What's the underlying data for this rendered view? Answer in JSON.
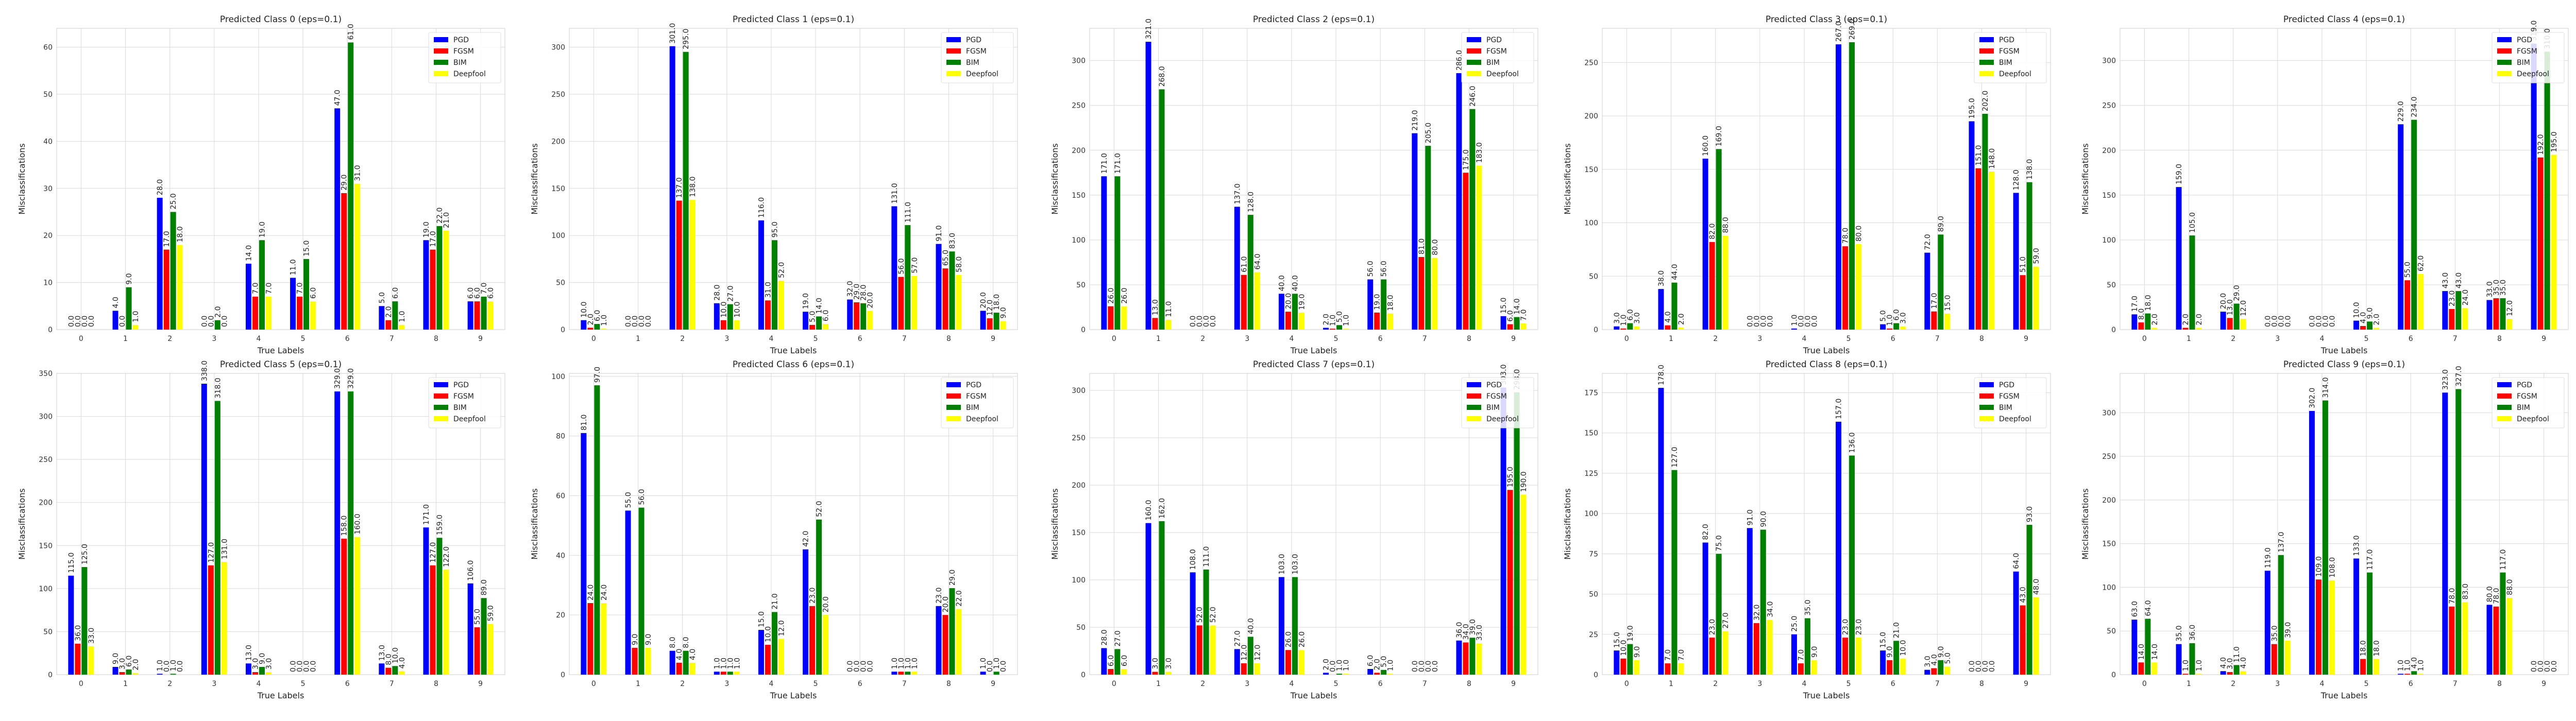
{
  "figure": {
    "xlabel": "True Labels",
    "ylabel": "Misclassifications",
    "legend_position": "top-right",
    "grid": true
  },
  "series_colors": {
    "PGD": "#0000ff",
    "FGSM": "#ff0000",
    "BIM": "#008000",
    "Deepfool": "#ffff00"
  },
  "chart_data": [
    {
      "type": "bar",
      "title": "Predicted Class 0 (eps=0.1)",
      "categories": [
        "0",
        "1",
        "2",
        "3",
        "4",
        "5",
        "6",
        "7",
        "8",
        "9"
      ],
      "xlabel": "True Labels",
      "ylabel": "Misclassifications",
      "ylim": [
        0,
        64
      ],
      "yticks": [
        0,
        10,
        20,
        30,
        40,
        50,
        60
      ],
      "series": [
        {
          "name": "PGD",
          "values": [
            0,
            4,
            28,
            0,
            14,
            11,
            47,
            5,
            19,
            6
          ]
        },
        {
          "name": "FGSM",
          "values": [
            0,
            0,
            17,
            0,
            7,
            7,
            29,
            2,
            17,
            6
          ]
        },
        {
          "name": "BIM",
          "values": [
            0,
            9,
            25,
            2,
            19,
            15,
            61,
            6,
            22,
            7
          ]
        },
        {
          "name": "Deepfool",
          "values": [
            0,
            1,
            18,
            0,
            7,
            6,
            31,
            1,
            21,
            6
          ]
        }
      ]
    },
    {
      "type": "bar",
      "title": "Predicted Class 1 (eps=0.1)",
      "categories": [
        "0",
        "1",
        "2",
        "3",
        "4",
        "5",
        "6",
        "7",
        "8",
        "9"
      ],
      "xlabel": "True Labels",
      "ylabel": "Misclassifications",
      "ylim": [
        0,
        320
      ],
      "yticks": [
        0,
        50,
        100,
        150,
        200,
        250,
        300
      ],
      "series": [
        {
          "name": "PGD",
          "values": [
            10,
            0,
            301,
            28,
            116,
            19,
            32,
            131,
            91,
            20
          ]
        },
        {
          "name": "FGSM",
          "values": [
            2,
            0,
            137,
            10,
            31,
            5,
            29,
            56,
            65,
            12
          ]
        },
        {
          "name": "BIM",
          "values": [
            6,
            0,
            295,
            27,
            95,
            14,
            28,
            111,
            83,
            18
          ]
        },
        {
          "name": "Deepfool",
          "values": [
            1,
            0,
            138,
            10,
            52,
            6,
            20,
            57,
            58,
            9
          ]
        }
      ]
    },
    {
      "type": "bar",
      "title": "Predicted Class 2 (eps=0.1)",
      "categories": [
        "0",
        "1",
        "2",
        "3",
        "4",
        "5",
        "6",
        "7",
        "8",
        "9"
      ],
      "xlabel": "True Labels",
      "ylabel": "Misclassifications",
      "ylim": [
        0,
        336
      ],
      "yticks": [
        0,
        50,
        100,
        150,
        200,
        250,
        300
      ],
      "series": [
        {
          "name": "PGD",
          "values": [
            171,
            321,
            0,
            137,
            40,
            2,
            56,
            219,
            286,
            15
          ]
        },
        {
          "name": "FGSM",
          "values": [
            26,
            13,
            0,
            61,
            20,
            1,
            19,
            81,
            175,
            6
          ]
        },
        {
          "name": "BIM",
          "values": [
            171,
            268,
            0,
            128,
            40,
            5,
            56,
            205,
            246,
            14
          ]
        },
        {
          "name": "Deepfool",
          "values": [
            26,
            11,
            0,
            64,
            19,
            1,
            18,
            80,
            183,
            7
          ]
        }
      ]
    },
    {
      "type": "bar",
      "title": "Predicted Class 3 (eps=0.1)",
      "categories": [
        "0",
        "1",
        "2",
        "3",
        "4",
        "5",
        "6",
        "7",
        "8",
        "9"
      ],
      "xlabel": "True Labels",
      "ylabel": "Misclassifications",
      "ylim": [
        0,
        282
      ],
      "yticks": [
        0,
        50,
        100,
        150,
        200,
        250
      ],
      "series": [
        {
          "name": "PGD",
          "values": [
            3,
            38,
            160,
            0,
            1,
            267,
            5,
            72,
            195,
            128
          ]
        },
        {
          "name": "FGSM",
          "values": [
            1,
            4,
            82,
            0,
            0,
            78,
            1,
            17,
            151,
            51
          ]
        },
        {
          "name": "BIM",
          "values": [
            6,
            44,
            169,
            0,
            0,
            269,
            6,
            89,
            202,
            138
          ]
        },
        {
          "name": "Deepfool",
          "values": [
            3,
            2,
            88,
            0,
            0,
            80,
            3,
            15,
            148,
            59
          ]
        }
      ]
    },
    {
      "type": "bar",
      "title": "Predicted Class 4 (eps=0.1)",
      "categories": [
        "0",
        "1",
        "2",
        "3",
        "4",
        "5",
        "6",
        "7",
        "8",
        "9"
      ],
      "xlabel": "True Labels",
      "ylabel": "Misclassifications",
      "ylim": [
        0,
        336
      ],
      "yticks": [
        0,
        50,
        100,
        150,
        200,
        250,
        300
      ],
      "series": [
        {
          "name": "PGD",
          "values": [
            17,
            159,
            20,
            0,
            0,
            10,
            229,
            43,
            33,
            319
          ]
        },
        {
          "name": "FGSM",
          "values": [
            8,
            2,
            13,
            0,
            0,
            4,
            55,
            23,
            35,
            192
          ]
        },
        {
          "name": "BIM",
          "values": [
            18,
            105,
            29,
            0,
            0,
            9,
            234,
            43,
            35,
            310
          ]
        },
        {
          "name": "Deepfool",
          "values": [
            2,
            2,
            12,
            0,
            0,
            2,
            62,
            24,
            12,
            195
          ]
        }
      ]
    },
    {
      "type": "bar",
      "title": "Predicted Class 5 (eps=0.1)",
      "categories": [
        "0",
        "1",
        "2",
        "3",
        "4",
        "5",
        "6",
        "7",
        "8",
        "9"
      ],
      "xlabel": "True Labels",
      "ylabel": "Misclassifications",
      "ylim": [
        0,
        350
      ],
      "yticks": [
        0,
        50,
        100,
        150,
        200,
        250,
        300,
        350
      ],
      "series": [
        {
          "name": "PGD",
          "values": [
            115,
            9,
            1,
            338,
            13,
            0,
            329,
            13,
            171,
            106
          ]
        },
        {
          "name": "FGSM",
          "values": [
            36,
            3,
            0,
            127,
            3,
            0,
            158,
            8,
            127,
            55
          ]
        },
        {
          "name": "BIM",
          "values": [
            125,
            6,
            1,
            318,
            9,
            0,
            329,
            10,
            159,
            89
          ]
        },
        {
          "name": "Deepfool",
          "values": [
            33,
            2,
            0,
            131,
            3,
            0,
            160,
            4,
            122,
            59
          ]
        }
      ]
    },
    {
      "type": "bar",
      "title": "Predicted Class 6 (eps=0.1)",
      "categories": [
        "0",
        "1",
        "2",
        "3",
        "4",
        "5",
        "6",
        "7",
        "8",
        "9"
      ],
      "xlabel": "True Labels",
      "ylabel": "Misclassifications",
      "ylim": [
        0,
        101
      ],
      "yticks": [
        0,
        20,
        40,
        60,
        80,
        100
      ],
      "series": [
        {
          "name": "PGD",
          "values": [
            81,
            55,
            8,
            1,
            15,
            42,
            0,
            1,
            23,
            1
          ]
        },
        {
          "name": "FGSM",
          "values": [
            24,
            9,
            4,
            1,
            10,
            23,
            0,
            1,
            20,
            0
          ]
        },
        {
          "name": "BIM",
          "values": [
            97,
            56,
            8,
            1,
            21,
            52,
            0,
            1,
            29,
            1
          ]
        },
        {
          "name": "Deepfool",
          "values": [
            24,
            9,
            4,
            1,
            12,
            20,
            0,
            1,
            22,
            0
          ]
        }
      ]
    },
    {
      "type": "bar",
      "title": "Predicted Class 7 (eps=0.1)",
      "categories": [
        "0",
        "1",
        "2",
        "3",
        "4",
        "5",
        "6",
        "7",
        "8",
        "9"
      ],
      "xlabel": "True Labels",
      "ylabel": "Misclassifications",
      "ylim": [
        0,
        318
      ],
      "yticks": [
        0,
        50,
        100,
        150,
        200,
        250,
        300
      ],
      "series": [
        {
          "name": "PGD",
          "values": [
            28,
            160,
            108,
            27,
            103,
            2,
            6,
            0,
            36,
            303
          ]
        },
        {
          "name": "FGSM",
          "values": [
            6,
            3,
            52,
            12,
            26,
            0,
            2,
            0,
            34,
            195
          ]
        },
        {
          "name": "BIM",
          "values": [
            27,
            162,
            111,
            40,
            103,
            1,
            5,
            0,
            39,
            298
          ]
        },
        {
          "name": "Deepfool",
          "values": [
            6,
            3,
            52,
            12,
            26,
            1,
            1,
            0,
            33,
            190
          ]
        }
      ]
    },
    {
      "type": "bar",
      "title": "Predicted Class 8 (eps=0.1)",
      "categories": [
        "0",
        "1",
        "2",
        "3",
        "4",
        "5",
        "6",
        "7",
        "8",
        "9"
      ],
      "xlabel": "True Labels",
      "ylabel": "Misclassifications",
      "ylim": [
        0,
        187
      ],
      "yticks": [
        0,
        25,
        50,
        75,
        100,
        125,
        150,
        175
      ],
      "series": [
        {
          "name": "PGD",
          "values": [
            15,
            178,
            82,
            91,
            25,
            157,
            15,
            3,
            0,
            64
          ]
        },
        {
          "name": "FGSM",
          "values": [
            10,
            7,
            23,
            32,
            7,
            23,
            9,
            4,
            0,
            43
          ]
        },
        {
          "name": "BIM",
          "values": [
            19,
            127,
            75,
            90,
            35,
            136,
            21,
            9,
            0,
            93
          ]
        },
        {
          "name": "Deepfool",
          "values": [
            9,
            7,
            27,
            34,
            9,
            23,
            10,
            5,
            0,
            48
          ]
        }
      ]
    },
    {
      "type": "bar",
      "title": "Predicted Class 9 (eps=0.1)",
      "categories": [
        "0",
        "1",
        "2",
        "3",
        "4",
        "5",
        "6",
        "7",
        "8",
        "9"
      ],
      "xlabel": "True Labels",
      "ylabel": "Misclassifications",
      "ylim": [
        0,
        345
      ],
      "yticks": [
        0,
        50,
        100,
        150,
        200,
        250,
        300
      ],
      "series": [
        {
          "name": "PGD",
          "values": [
            63,
            35,
            4,
            119,
            302,
            133,
            1,
            323,
            80,
            0
          ]
        },
        {
          "name": "FGSM",
          "values": [
            14,
            1,
            3,
            35,
            109,
            18,
            1,
            78,
            78,
            0
          ]
        },
        {
          "name": "BIM",
          "values": [
            64,
            36,
            11,
            137,
            314,
            117,
            4,
            327,
            117,
            0
          ]
        },
        {
          "name": "Deepfool",
          "values": [
            14,
            1,
            4,
            39,
            108,
            18,
            1,
            83,
            88,
            0
          ]
        }
      ]
    }
  ]
}
